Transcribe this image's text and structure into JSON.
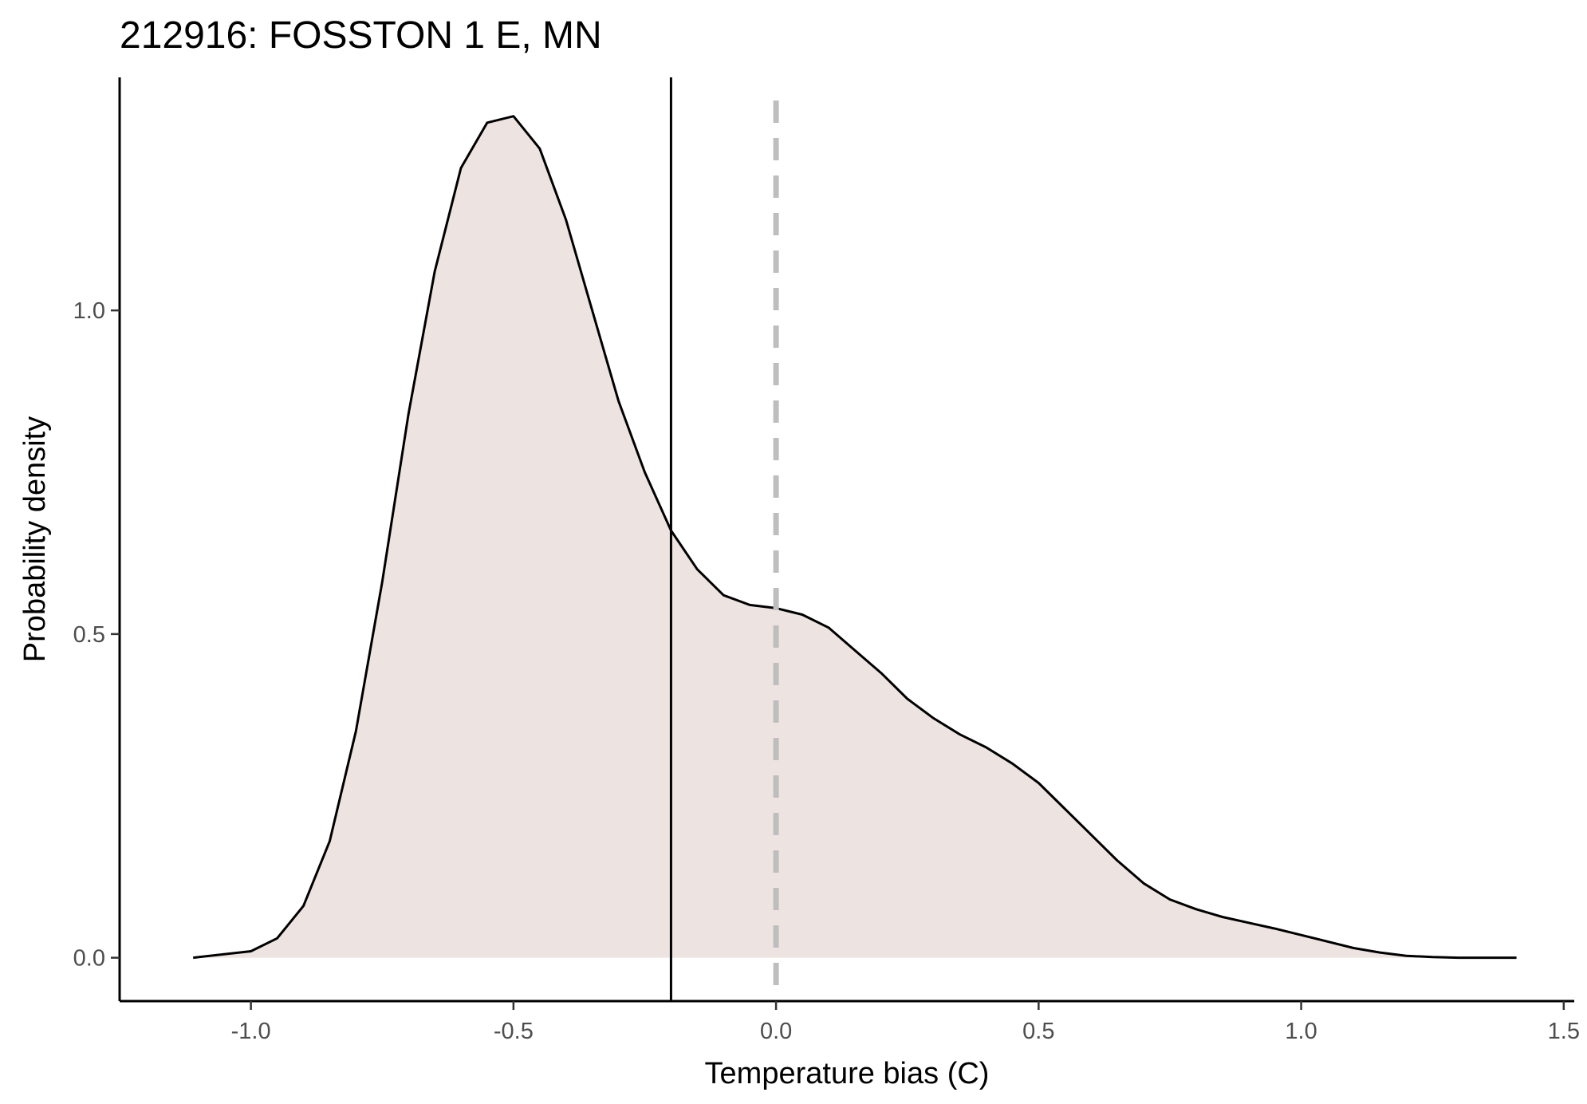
{
  "chart_data": {
    "type": "area",
    "title": "212916: FOSSTON 1 E, MN",
    "xlabel": "Temperature bias (C)",
    "ylabel": "Probability density",
    "xlim": [
      -1.25,
      1.52
    ],
    "ylim": [
      -0.067,
      1.36
    ],
    "xticks": [
      -1.0,
      -0.5,
      0.0,
      0.5,
      1.0,
      1.5
    ],
    "xtick_labels": [
      "-1.0",
      "-0.5",
      "0.0",
      "0.5",
      "1.0",
      "1.5"
    ],
    "yticks": [
      0.0,
      0.5,
      1.0
    ],
    "ytick_labels": [
      "0.0",
      "0.5",
      "1.0"
    ],
    "grid": false,
    "legend": "none",
    "fill_color": "#ede4e1",
    "line_color": "#000000",
    "series": [
      {
        "x": [
          -1.11,
          -1.0,
          -0.95,
          -0.9,
          -0.85,
          -0.8,
          -0.75,
          -0.7,
          -0.65,
          -0.6,
          -0.55,
          -0.5,
          -0.45,
          -0.4,
          -0.35,
          -0.3,
          -0.25,
          -0.2,
          -0.15,
          -0.1,
          -0.05,
          0.0,
          0.05,
          0.1,
          0.15,
          0.2,
          0.25,
          0.3,
          0.35,
          0.4,
          0.45,
          0.5,
          0.55,
          0.6,
          0.65,
          0.7,
          0.75,
          0.8,
          0.85,
          0.9,
          0.95,
          1.0,
          1.05,
          1.1,
          1.15,
          1.2,
          1.25,
          1.3,
          1.35,
          1.41
        ],
        "y": [
          0.0,
          0.01,
          0.03,
          0.08,
          0.18,
          0.35,
          0.58,
          0.84,
          1.06,
          1.22,
          1.29,
          1.3,
          1.25,
          1.14,
          1.0,
          0.86,
          0.75,
          0.66,
          0.6,
          0.56,
          0.545,
          0.54,
          0.53,
          0.51,
          0.475,
          0.44,
          0.4,
          0.37,
          0.345,
          0.325,
          0.3,
          0.27,
          0.23,
          0.19,
          0.15,
          0.115,
          0.09,
          0.075,
          0.063,
          0.054,
          0.045,
          0.035,
          0.025,
          0.015,
          0.008,
          0.003,
          0.001,
          0.0,
          0.0,
          0.0
        ]
      }
    ],
    "vlines": [
      {
        "x": -0.2,
        "style": "solid",
        "color": "#000000"
      },
      {
        "x": 0.0,
        "style": "dashed",
        "color": "#bebebe"
      }
    ]
  }
}
